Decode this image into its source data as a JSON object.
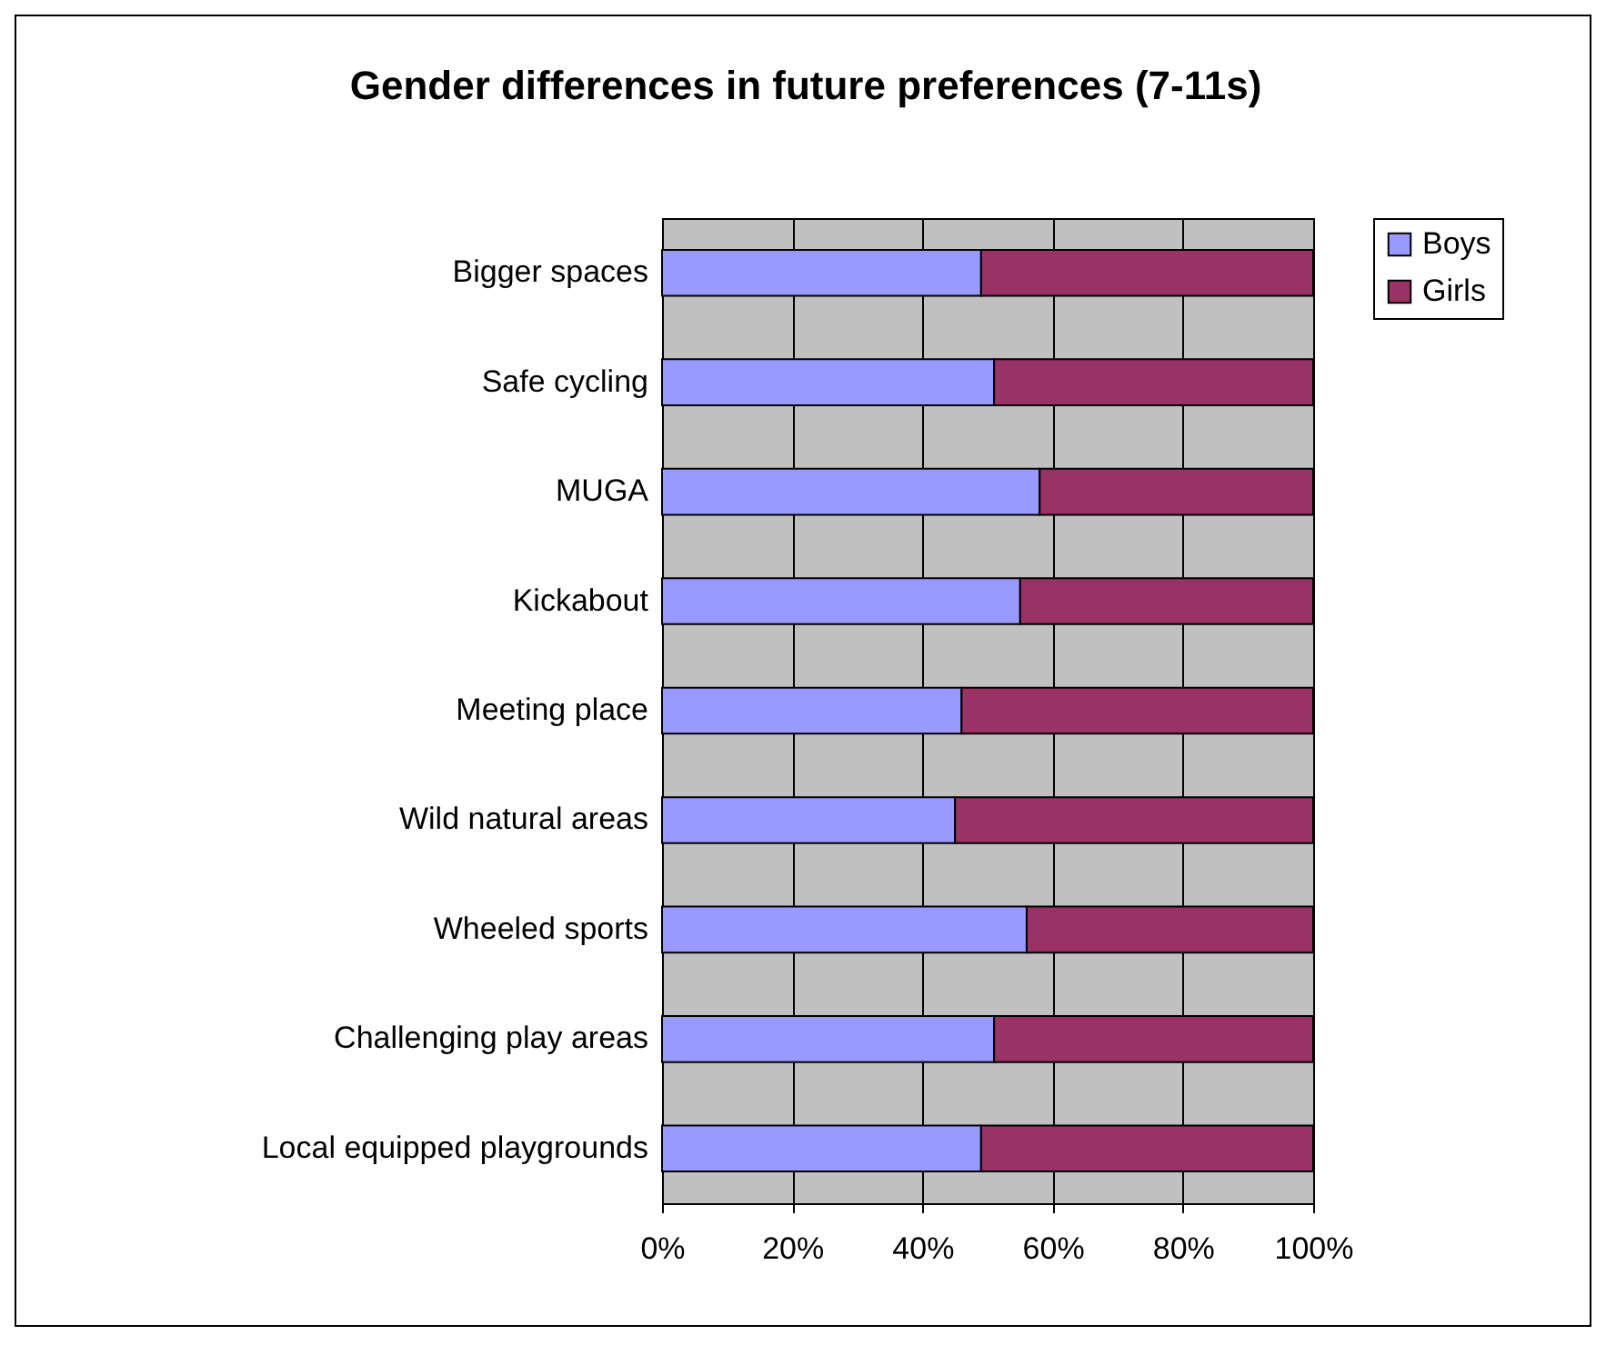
{
  "chart_data": {
    "type": "bar",
    "orientation": "horizontal",
    "stacked": true,
    "title": "Gender differences in future preferences (7-11s)",
    "categories": [
      "Bigger spaces",
      "Safe cycling",
      "MUGA",
      "Kickabout",
      "Meeting place",
      "Wild natural areas",
      "Wheeled sports",
      "Challenging play areas",
      "Local equipped playgrounds"
    ],
    "series": [
      {
        "name": "Boys",
        "color": "#9999ff",
        "values": [
          49,
          51,
          58,
          55,
          46,
          45,
          56,
          51,
          49
        ]
      },
      {
        "name": "Girls",
        "color": "#993366",
        "values": [
          51,
          49,
          42,
          45,
          54,
          55,
          44,
          49,
          51
        ]
      }
    ],
    "xlim": [
      0,
      100
    ],
    "xticks": [
      {
        "value": 0,
        "label": "0%"
      },
      {
        "value": 20,
        "label": "20%"
      },
      {
        "value": 40,
        "label": "40%"
      },
      {
        "value": 60,
        "label": "60%"
      },
      {
        "value": 80,
        "label": "80%"
      },
      {
        "value": 100,
        "label": "100%"
      }
    ],
    "grid": "x",
    "legend": "right"
  }
}
